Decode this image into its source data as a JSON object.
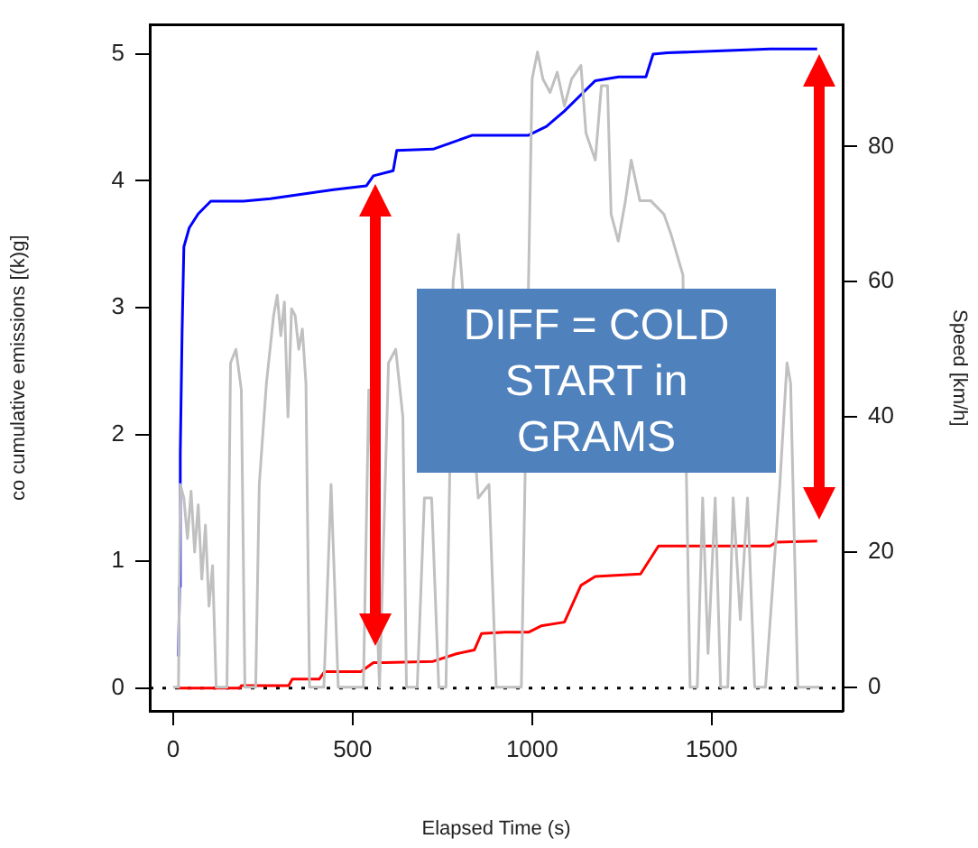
{
  "chart_data": {
    "type": "line",
    "xlabel": "Elapsed Time (s)",
    "ylabel": "co cumulative emissions [(k)g]",
    "y2label": "Speed [km/h]",
    "xlim": [
      -65,
      1865
    ],
    "xticks": [
      0,
      500,
      1000,
      1500
    ],
    "ylim": [
      -0.18,
      5.23
    ],
    "yticks": [
      0,
      1,
      2,
      3,
      4,
      5
    ],
    "y2lim": [
      -3.5,
      98
    ],
    "y2ticks": [
      0,
      20,
      40,
      60,
      80
    ],
    "grid": false,
    "legend": false,
    "marker": "none",
    "line_style": "solid",
    "series": [
      {
        "color": "#c0c0c0",
        "axis": "y2",
        "x": [
          0,
          15,
          20,
          30,
          40,
          50,
          60,
          70,
          80,
          90,
          100,
          110,
          120,
          150,
          160,
          175,
          190,
          200,
          230,
          240,
          260,
          280,
          290,
          300,
          310,
          320,
          330,
          340,
          350,
          360,
          370,
          380,
          420,
          440,
          460,
          530,
          545,
          575,
          600,
          620,
          640,
          650,
          680,
          700,
          720,
          740,
          760,
          780,
          795,
          850,
          880,
          900,
          970,
          990,
          1000,
          1015,
          1030,
          1050,
          1070,
          1090,
          1110,
          1136,
          1150,
          1176,
          1193,
          1210,
          1220,
          1240,
          1260,
          1276,
          1300,
          1330,
          1367,
          1387,
          1420,
          1440,
          1460,
          1475,
          1490,
          1510,
          1525,
          1545,
          1560,
          1580,
          1600,
          1620,
          1650,
          1690,
          1710,
          1720,
          1740,
          1800
        ],
        "values": [
          0,
          0,
          30,
          28,
          22,
          29,
          20,
          27,
          16,
          24,
          12,
          18,
          0,
          0,
          48,
          50,
          44,
          0,
          0,
          30,
          45,
          55,
          58,
          52,
          57,
          40,
          56,
          55,
          50,
          53,
          45,
          0,
          0,
          30,
          0,
          0,
          44,
          0,
          48,
          50,
          40,
          0,
          0,
          28,
          28,
          0,
          0,
          60,
          67,
          28,
          30,
          0,
          0,
          60,
          90,
          94,
          90,
          88,
          91,
          86,
          90,
          92,
          82,
          78,
          89,
          89,
          70,
          66,
          72,
          78,
          72,
          72,
          70,
          67,
          61,
          0,
          0,
          28,
          5,
          28,
          0,
          0,
          28,
          10,
          28,
          0,
          0,
          30,
          48,
          45,
          0,
          0
        ]
      },
      {
        "color": "#0000ff",
        "x": [
          15,
          18,
          20,
          25,
          30,
          45,
          70,
          105,
          196,
          271,
          372,
          447,
          538,
          558,
          613,
          623,
          724,
          774,
          834,
          925,
          990,
          1040,
          1090,
          1140,
          1176,
          1241,
          1317,
          1337,
          1377,
          1663,
          1794
        ],
        "values": [
          0.25,
          0.8,
          1.85,
          2.8,
          3.48,
          3.63,
          3.74,
          3.84,
          3.84,
          3.86,
          3.9,
          3.93,
          3.96,
          4.04,
          4.08,
          4.24,
          4.25,
          4.3,
          4.36,
          4.36,
          4.36,
          4.43,
          4.55,
          4.69,
          4.79,
          4.82,
          4.82,
          5.0,
          5.01,
          5.04,
          5.04
        ]
      },
      {
        "color": "#ff0000",
        "x": [
          15,
          186,
          190,
          322,
          332,
          407,
          422,
          523,
          558,
          588,
          724,
          789,
          839,
          859,
          925,
          990,
          1025,
          1090,
          1136,
          1176,
          1302,
          1352,
          1663,
          1680,
          1794
        ],
        "values": [
          0,
          0,
          0.02,
          0.02,
          0.07,
          0.07,
          0.13,
          0.13,
          0.2,
          0.2,
          0.21,
          0.27,
          0.3,
          0.43,
          0.44,
          0.44,
          0.49,
          0.52,
          0.81,
          0.88,
          0.9,
          1.12,
          1.12,
          1.15,
          1.16
        ]
      }
    ],
    "ref_lines": [
      {
        "axis": "y",
        "value": 0,
        "color": "#000000",
        "line_style": "dotted"
      }
    ],
    "annotations": [
      "DIFF = COLD START in GRAMS"
    ]
  }
}
